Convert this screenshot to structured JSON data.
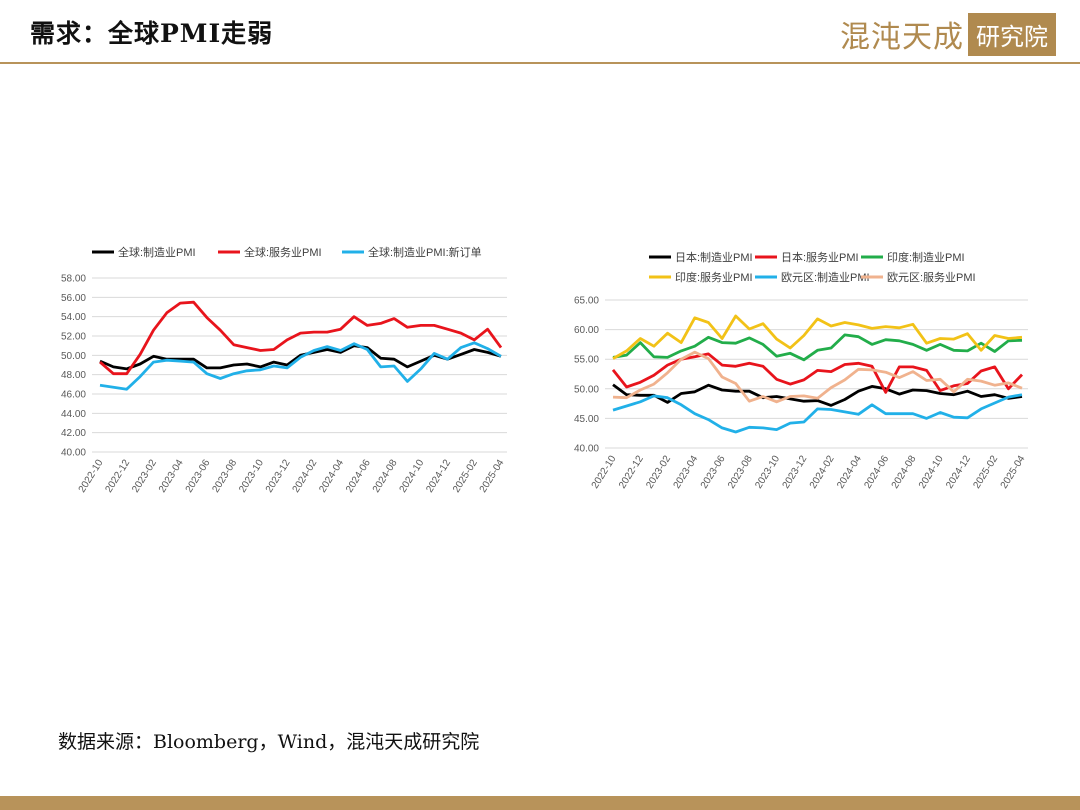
{
  "header": {
    "title": "需求：全球PMI走弱",
    "brand_name": "混沌天成",
    "brand_box": "研究院"
  },
  "footer": {
    "source": "数据来源：Bloomberg，Wind，混沌天成研究院"
  },
  "colors": {
    "black": "#000000",
    "red": "#e8141c",
    "blue": "#21b0e8",
    "green": "#22ad4a",
    "yellow": "#f2c217",
    "peach": "#f0b28e",
    "accent": "#b8935a"
  },
  "chart_data": [
    {
      "type": "line",
      "ylim": [
        40,
        58
      ],
      "yticks": [
        "40.00",
        "42.00",
        "44.00",
        "46.00",
        "48.00",
        "50.00",
        "52.00",
        "54.00",
        "56.00",
        "58.00"
      ],
      "x": [
        "2022-10",
        "2022-11",
        "2022-12",
        "2023-01",
        "2023-02",
        "2023-03",
        "2023-04",
        "2023-05",
        "2023-06",
        "2023-07",
        "2023-08",
        "2023-09",
        "2023-10",
        "2023-11",
        "2023-12",
        "2024-01",
        "2024-02",
        "2024-03",
        "2024-04",
        "2024-05",
        "2024-06",
        "2024-07",
        "2024-08",
        "2024-09",
        "2024-10",
        "2024-11",
        "2024-12",
        "2025-01",
        "2025-02",
        "2025-03",
        "2025-04"
      ],
      "xtick_labels": [
        "2022-10",
        "2022-12",
        "2023-02",
        "2023-04",
        "2023-06",
        "2023-08",
        "2023-10",
        "2023-12",
        "2024-02",
        "2024-04",
        "2024-06",
        "2024-08",
        "2024-10",
        "2024-12",
        "2025-02",
        "2025-04"
      ],
      "legend_position": "top",
      "series": [
        {
          "name": "全球:制造业PMI",
          "color": "#000000",
          "values": [
            49.4,
            48.8,
            48.6,
            49.1,
            49.9,
            49.6,
            49.6,
            49.6,
            48.7,
            48.7,
            49.0,
            49.1,
            48.8,
            49.3,
            49.0,
            50.0,
            50.3,
            50.6,
            50.3,
            51.0,
            50.8,
            49.7,
            49.6,
            48.8,
            49.4,
            50.0,
            49.6,
            50.1,
            50.6,
            50.3,
            49.9
          ]
        },
        {
          "name": "全球:服务业PMI",
          "color": "#e8141c",
          "values": [
            49.3,
            48.1,
            48.1,
            50.1,
            52.6,
            54.4,
            55.4,
            55.5,
            53.9,
            52.6,
            51.1,
            50.8,
            50.5,
            50.6,
            51.6,
            52.3,
            52.4,
            52.4,
            52.7,
            54.0,
            53.1,
            53.3,
            53.8,
            52.9,
            53.1,
            53.1,
            52.7,
            52.3,
            51.6,
            52.7,
            50.8
          ]
        },
        {
          "name": "全球:制造业PMI:新订单",
          "color": "#21b0e8",
          "values": [
            46.9,
            46.7,
            46.5,
            47.8,
            49.3,
            49.5,
            49.4,
            49.3,
            48.1,
            47.6,
            48.1,
            48.4,
            48.5,
            48.9,
            48.7,
            49.8,
            50.5,
            50.9,
            50.5,
            51.2,
            50.6,
            48.8,
            48.9,
            47.3,
            48.6,
            50.2,
            49.6,
            50.8,
            51.3,
            50.7,
            49.9
          ]
        }
      ]
    },
    {
      "type": "line",
      "ylim": [
        40,
        65
      ],
      "yticks": [
        "40.00",
        "45.00",
        "50.00",
        "55.00",
        "60.00",
        "65.00"
      ],
      "x": [
        "2022-10",
        "2022-11",
        "2022-12",
        "2023-01",
        "2023-02",
        "2023-03",
        "2023-04",
        "2023-05",
        "2023-06",
        "2023-07",
        "2023-08",
        "2023-09",
        "2023-10",
        "2023-11",
        "2023-12",
        "2024-01",
        "2024-02",
        "2024-03",
        "2024-04",
        "2024-05",
        "2024-06",
        "2024-07",
        "2024-08",
        "2024-09",
        "2024-10",
        "2024-11",
        "2024-12",
        "2025-01",
        "2025-02",
        "2025-03",
        "2025-04"
      ],
      "xtick_labels": [
        "2022-10",
        "2022-12",
        "2023-02",
        "2023-04",
        "2023-06",
        "2023-08",
        "2023-10",
        "2023-12",
        "2024-02",
        "2024-04",
        "2024-06",
        "2024-08",
        "2024-10",
        "2024-12",
        "2025-02",
        "2025-04"
      ],
      "legend_position": "top",
      "series": [
        {
          "name": "日本:制造业PMI",
          "color": "#000000",
          "values": [
            50.7,
            49.0,
            48.9,
            48.9,
            47.7,
            49.2,
            49.5,
            50.6,
            49.8,
            49.6,
            49.6,
            48.5,
            48.7,
            48.3,
            47.9,
            48.0,
            47.2,
            48.2,
            49.6,
            50.4,
            50.0,
            49.1,
            49.8,
            49.7,
            49.2,
            49.0,
            49.6,
            48.7,
            49.0,
            48.4,
            48.7
          ]
        },
        {
          "name": "日本:服务业PMI",
          "color": "#e8141c",
          "values": [
            53.2,
            50.3,
            51.1,
            52.3,
            54.0,
            55.0,
            55.4,
            55.9,
            54.0,
            53.8,
            54.3,
            53.8,
            51.6,
            50.8,
            51.5,
            53.1,
            52.9,
            54.1,
            54.3,
            53.8,
            49.4,
            53.7,
            53.7,
            53.1,
            49.7,
            50.5,
            50.9,
            53.0,
            53.7,
            50.0,
            52.4
          ]
        },
        {
          "name": "印度:制造业PMI",
          "color": "#22ad4a",
          "values": [
            55.3,
            55.7,
            57.8,
            55.4,
            55.3,
            56.4,
            57.2,
            58.7,
            57.8,
            57.7,
            58.6,
            57.5,
            55.5,
            56.0,
            54.9,
            56.5,
            56.9,
            59.1,
            58.8,
            57.5,
            58.3,
            58.1,
            57.5,
            56.5,
            57.5,
            56.5,
            56.4,
            57.7,
            56.3,
            58.1,
            58.2
          ]
        },
        {
          "name": "印度:服务业PMI",
          "color": "#f2c217",
          "values": [
            55.1,
            56.4,
            58.5,
            57.2,
            59.4,
            57.8,
            62.0,
            61.2,
            58.5,
            62.3,
            60.1,
            61.0,
            58.4,
            56.9,
            59.0,
            61.8,
            60.6,
            61.2,
            60.8,
            60.2,
            60.5,
            60.3,
            60.9,
            57.7,
            58.5,
            58.4,
            59.3,
            56.5,
            59.0,
            58.5,
            58.7
          ]
        },
        {
          "name": "欧元区:制造业PMI",
          "color": "#21b0e8",
          "values": [
            46.4,
            47.1,
            47.8,
            48.8,
            48.5,
            47.3,
            45.8,
            44.8,
            43.4,
            42.7,
            43.5,
            43.4,
            43.1,
            44.2,
            44.4,
            46.6,
            46.5,
            46.1,
            45.7,
            47.3,
            45.8,
            45.8,
            45.8,
            45.0,
            46.0,
            45.2,
            45.1,
            46.6,
            47.6,
            48.6,
            49.0
          ]
        },
        {
          "name": "欧元区:服务业PMI",
          "color": "#f0b28e",
          "values": [
            48.6,
            48.5,
            49.8,
            50.8,
            52.7,
            55.0,
            56.2,
            55.1,
            52.0,
            50.9,
            47.9,
            48.7,
            47.8,
            48.7,
            48.8,
            48.4,
            50.2,
            51.5,
            53.3,
            53.2,
            52.8,
            51.9,
            52.9,
            51.4,
            51.6,
            49.5,
            51.6,
            51.3,
            50.6,
            51.0,
            50.1
          ]
        }
      ]
    }
  ]
}
